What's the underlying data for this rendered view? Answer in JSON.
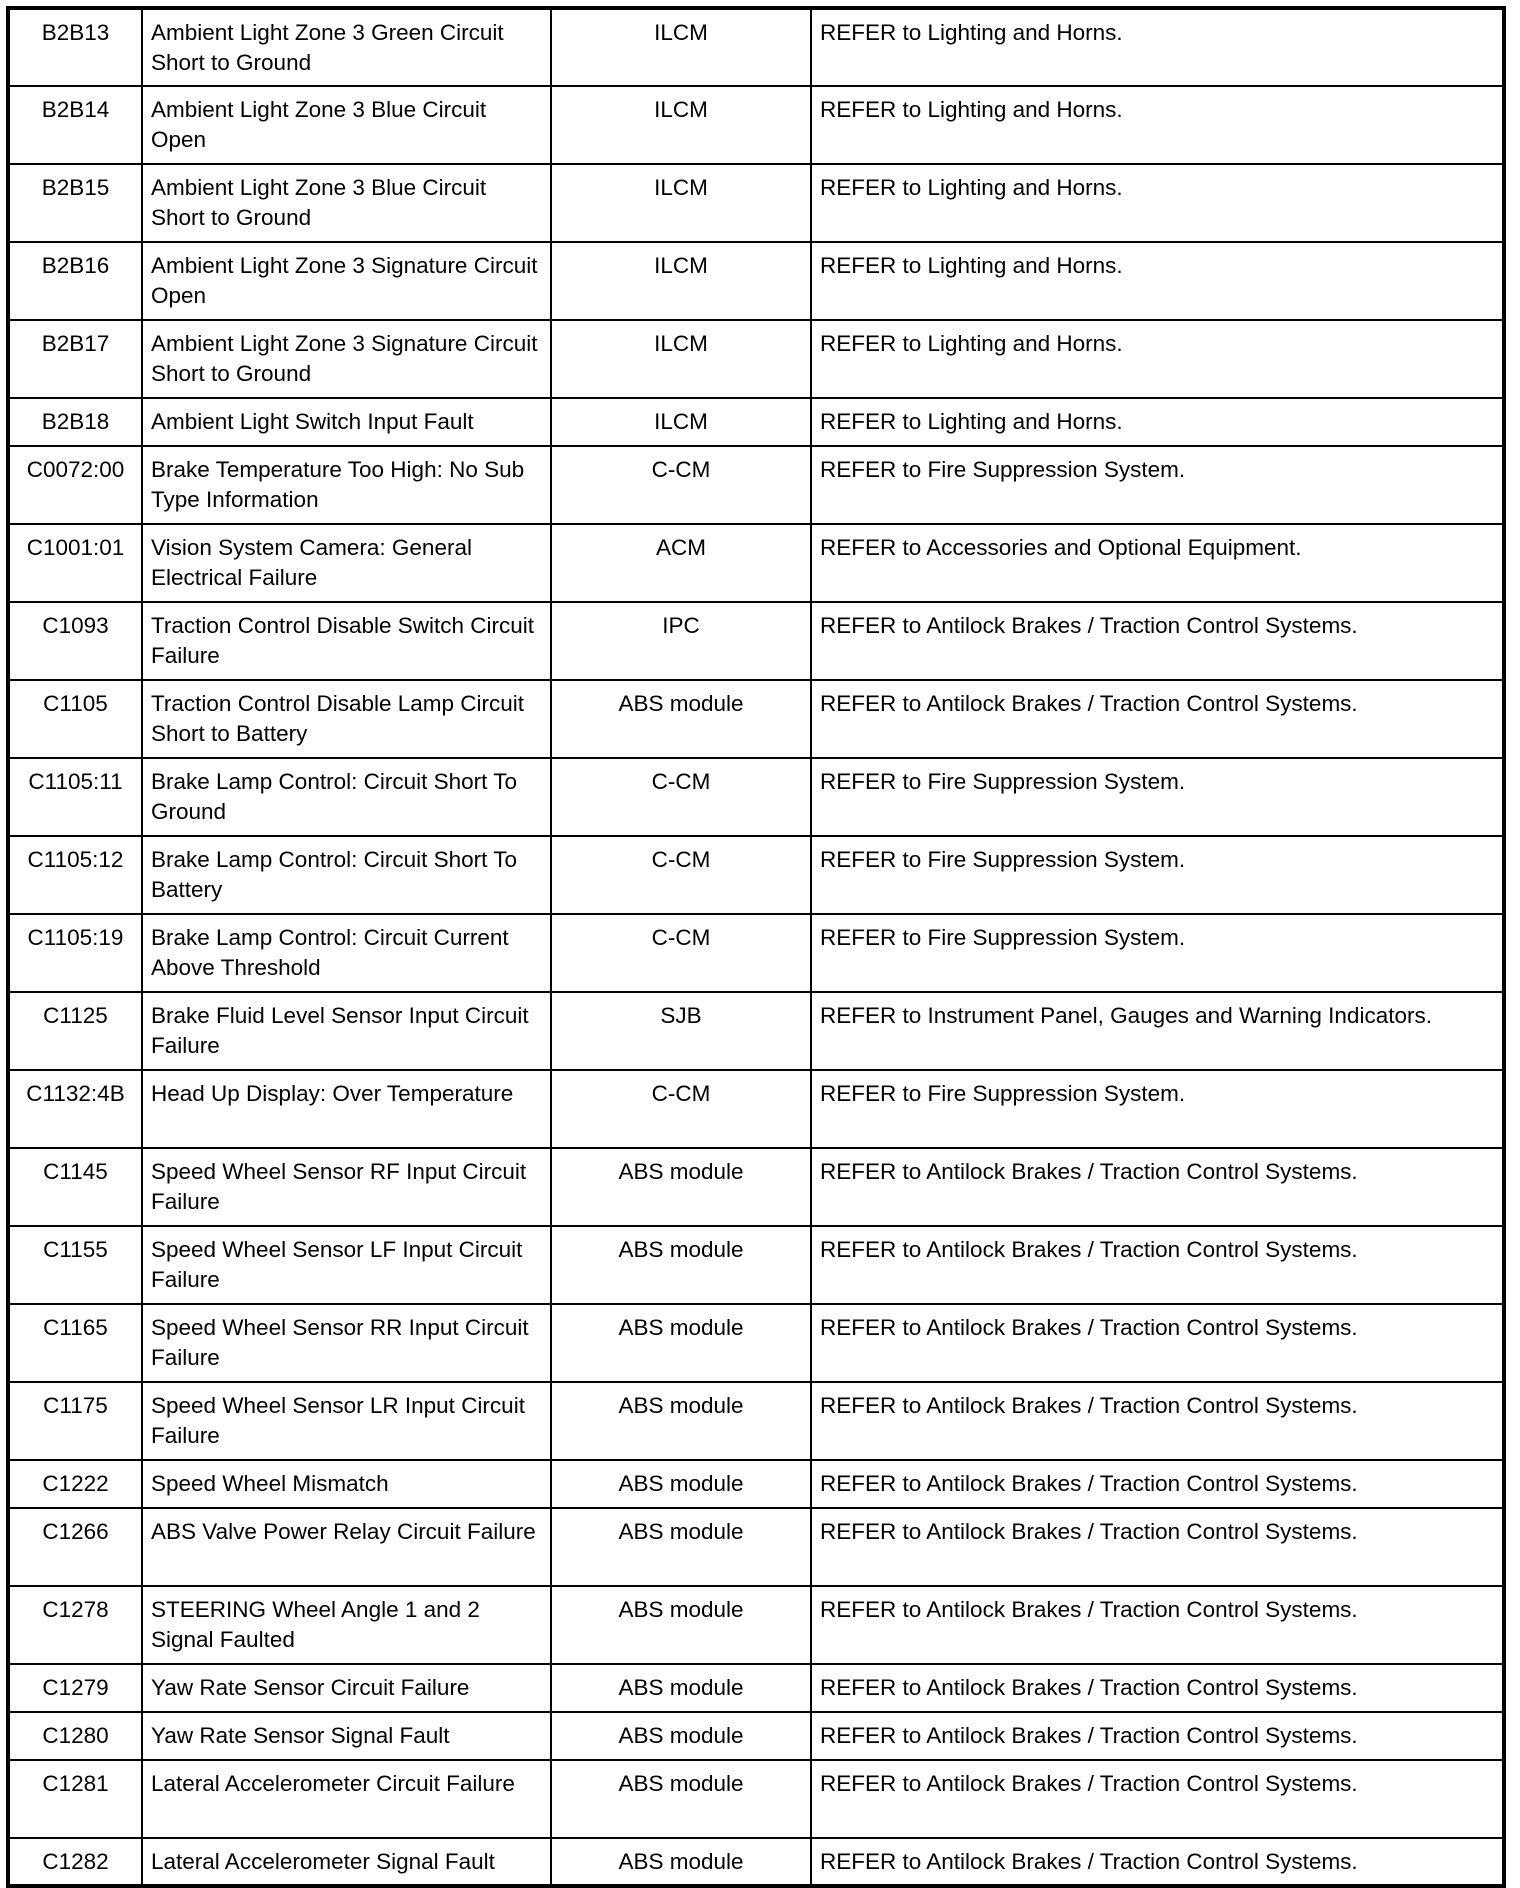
{
  "rows": [
    {
      "code": "B2B13",
      "description": "Ambient Light Zone 3 Green Circuit Short to Ground",
      "module": "ILCM",
      "action": "REFER to Lighting and Horns."
    },
    {
      "code": "B2B14",
      "description": "Ambient Light Zone 3 Blue Circuit Open",
      "module": "ILCM",
      "action": "REFER to Lighting and Horns."
    },
    {
      "code": "B2B15",
      "description": "Ambient Light Zone 3 Blue Circuit Short to Ground",
      "module": "ILCM",
      "action": "REFER to Lighting and Horns."
    },
    {
      "code": "B2B16",
      "description": "Ambient Light Zone 3 Signature Circuit Open",
      "module": "ILCM",
      "action": "REFER to Lighting and Horns."
    },
    {
      "code": "B2B17",
      "description": "Ambient Light Zone 3 Signature Circuit Short to Ground",
      "module": "ILCM",
      "action": "REFER to Lighting and Horns."
    },
    {
      "code": "B2B18",
      "description": "Ambient Light Switch Input Fault",
      "module": "ILCM",
      "action": "REFER to Lighting and Horns."
    },
    {
      "code": "C0072:00",
      "description": "Brake Temperature Too High: No Sub Type Information",
      "module": "C-CM",
      "action": "REFER to Fire Suppression System."
    },
    {
      "code": "C1001:01",
      "description": "Vision System Camera: General Electrical Failure",
      "module": "ACM",
      "action": "REFER to Accessories and Optional Equipment."
    },
    {
      "code": "C1093",
      "description": "Traction Control Disable Switch Circuit Failure",
      "module": "IPC",
      "action": "REFER to Antilock Brakes / Traction Control Systems."
    },
    {
      "code": "C1105",
      "description": "Traction Control Disable Lamp Circuit Short to Battery",
      "module": "ABS module",
      "action": "REFER to Antilock Brakes / Traction Control Systems."
    },
    {
      "code": "C1105:11",
      "description": "Brake Lamp Control: Circuit Short To Ground",
      "module": "C-CM",
      "action": "REFER to Fire Suppression System."
    },
    {
      "code": "C1105:12",
      "description": "Brake Lamp Control: Circuit Short To Battery",
      "module": "C-CM",
      "action": "REFER to Fire Suppression System."
    },
    {
      "code": "C1105:19",
      "description": "Brake Lamp Control: Circuit Current Above Threshold",
      "module": "C-CM",
      "action": "REFER to Fire Suppression System."
    },
    {
      "code": "C1125",
      "description": "Brake Fluid Level Sensor Input Circuit Failure",
      "module": "SJB",
      "action": "REFER to Instrument Panel, Gauges and Warning Indicators."
    },
    {
      "code": "C1132:4B",
      "description": "Head Up Display: Over Temperature",
      "module": "C-CM",
      "action": "REFER to Fire Suppression System."
    },
    {
      "code": "C1145",
      "description": "Speed Wheel Sensor RF Input Circuit Failure",
      "module": "ABS module",
      "action": "REFER to Antilock Brakes / Traction Control Systems."
    },
    {
      "code": "C1155",
      "description": "Speed Wheel Sensor LF Input Circuit Failure",
      "module": "ABS module",
      "action": "REFER to Antilock Brakes / Traction Control Systems."
    },
    {
      "code": "C1165",
      "description": "Speed Wheel Sensor RR Input Circuit Failure",
      "module": "ABS module",
      "action": "REFER to Antilock Brakes / Traction Control Systems."
    },
    {
      "code": "C1175",
      "description": "Speed Wheel Sensor LR Input Circuit Failure",
      "module": "ABS module",
      "action": "REFER to Antilock Brakes / Traction Control Systems."
    },
    {
      "code": "C1222",
      "description": "Speed Wheel Mismatch",
      "module": "ABS module",
      "action": "REFER to Antilock Brakes / Traction Control Systems."
    },
    {
      "code": "C1266",
      "description": "ABS Valve Power Relay Circuit Failure",
      "module": "ABS module",
      "action": "REFER to Antilock Brakes / Traction Control Systems."
    },
    {
      "code": "C1278",
      "description": "STEERING Wheel Angle 1 and 2 Signal Faulted",
      "module": "ABS module",
      "action": "REFER to Antilock Brakes / Traction Control Systems."
    },
    {
      "code": "C1279",
      "description": "Yaw Rate Sensor Circuit Failure",
      "module": "ABS module",
      "action": "REFER to Antilock Brakes / Traction Control Systems."
    },
    {
      "code": "C1280",
      "description": "Yaw Rate Sensor Signal Fault",
      "module": "ABS module",
      "action": "REFER to Antilock Brakes / Traction Control Systems."
    },
    {
      "code": "C1281",
      "description": "Lateral Accelerometer Circuit Failure",
      "module": "ABS module",
      "action": "REFER to Antilock Brakes / Traction Control Systems."
    },
    {
      "code": "C1282",
      "description": "Lateral Accelerometer Signal Fault",
      "module": "ABS module",
      "action": "REFER to Antilock Brakes / Traction Control Systems."
    }
  ]
}
